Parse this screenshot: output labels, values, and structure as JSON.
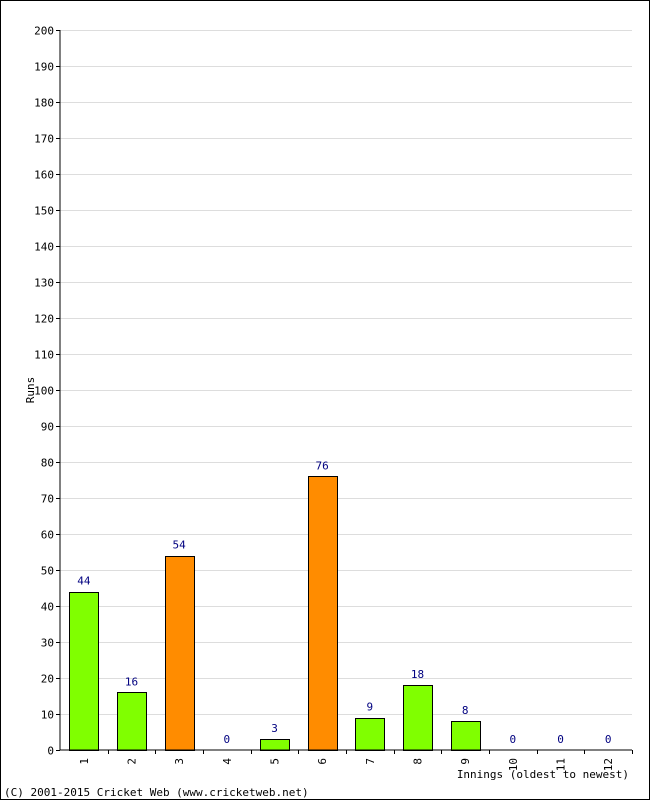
{
  "chart_data": {
    "type": "bar",
    "categories": [
      "1",
      "2",
      "3",
      "4",
      "5",
      "6",
      "7",
      "8",
      "9",
      "10",
      "11",
      "12"
    ],
    "values": [
      44,
      16,
      54,
      0,
      3,
      76,
      9,
      18,
      8,
      0,
      0,
      0
    ],
    "bar_colors": [
      "#80ff00",
      "#80ff00",
      "#ff8c00",
      "#80ff00",
      "#80ff00",
      "#ff8c00",
      "#80ff00",
      "#80ff00",
      "#80ff00",
      "#80ff00",
      "#80ff00",
      "#80ff00"
    ],
    "ylabel": "Runs",
    "xlabel": "Innings (oldest to newest)",
    "ylim": [
      0,
      200
    ],
    "ytick_step": 10,
    "grid": true,
    "label_color": "#000080",
    "grid_color": "#dddddd"
  },
  "footer": {
    "copyright": "(C) 2001-2015 Cricket Web (www.cricketweb.net)"
  }
}
